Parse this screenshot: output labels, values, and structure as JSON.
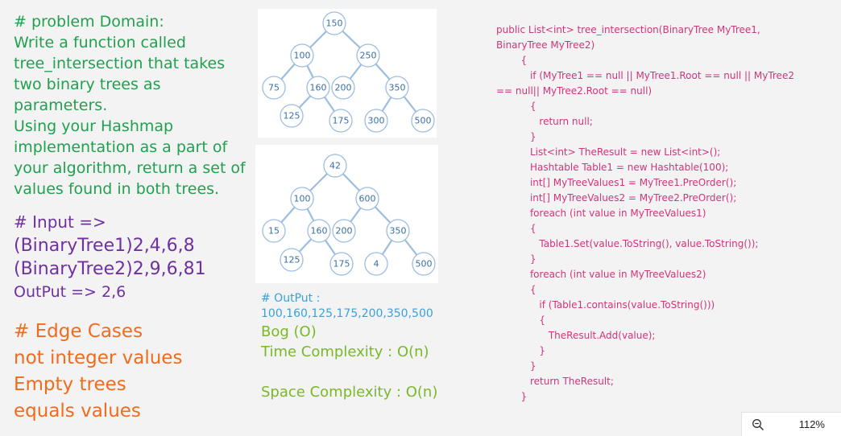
{
  "problem": {
    "lines": [
      "# problem Domain:",
      "Write a function called",
      "tree_intersection that takes",
      "two binary trees as",
      "parameters.",
      "Using your Hashmap",
      "implementation as a part of",
      "your algorithm, return a set of",
      "values found in both trees."
    ]
  },
  "io": {
    "lines": [
      "# Input =>",
      "(BinaryTree1)2,4,6,8",
      "(BinaryTree2)2,9,6,81",
      "OutPut => 2,6"
    ]
  },
  "edge_cases": {
    "lines": [
      "# Edge Cases",
      "not integer values",
      "Empty trees",
      "equals values"
    ]
  },
  "tree1": {
    "nodes": [
      "150",
      "100",
      "250",
      "75",
      "160",
      "200",
      "350",
      "125",
      "175",
      "300",
      "500"
    ]
  },
  "tree2": {
    "nodes": [
      "42",
      "100",
      "600",
      "15",
      "160",
      "200",
      "350",
      "125",
      "175",
      "4",
      "500"
    ]
  },
  "output": {
    "label": "# OutPut :",
    "values": "100,160,125,175,200,350,500",
    "bog": "Bog (O)",
    "time": "Time Complexity : O(n)",
    "space": "Space Complexity : O(n)"
  },
  "code": {
    "lines": [
      "public List<int> tree_intersection(BinaryTree MyTree1,",
      "BinaryTree MyTree2)",
      "        {",
      "           if (MyTree1 == null || MyTree1.Root == null || MyTree2",
      "== null|| MyTree2.Root == null)",
      "           {",
      "              return null;",
      "           }",
      "           List<int> TheResult = new List<int>();",
      "           Hashtable Table1 = new Hashtable(100);",
      "           int[] MyTreeValues1 = MyTree1.PreOrder();",
      "           int[] MyTreeValues2 = MyTree2.PreOrder();",
      "           foreach (int value in MyTreeValues1)",
      "           {",
      "              Table1.Set(value.ToString(), value.ToString());",
      "           }",
      "           foreach (int value in MyTreeValues2)",
      "           {",
      "              if (Table1.contains(value.ToString()))",
      "              {",
      "                 TheResult.Add(value);",
      "              }",
      "           }",
      "           return TheResult;",
      "        }"
    ]
  },
  "zoom": {
    "icon": "zoom-out-icon",
    "level": "112%"
  }
}
